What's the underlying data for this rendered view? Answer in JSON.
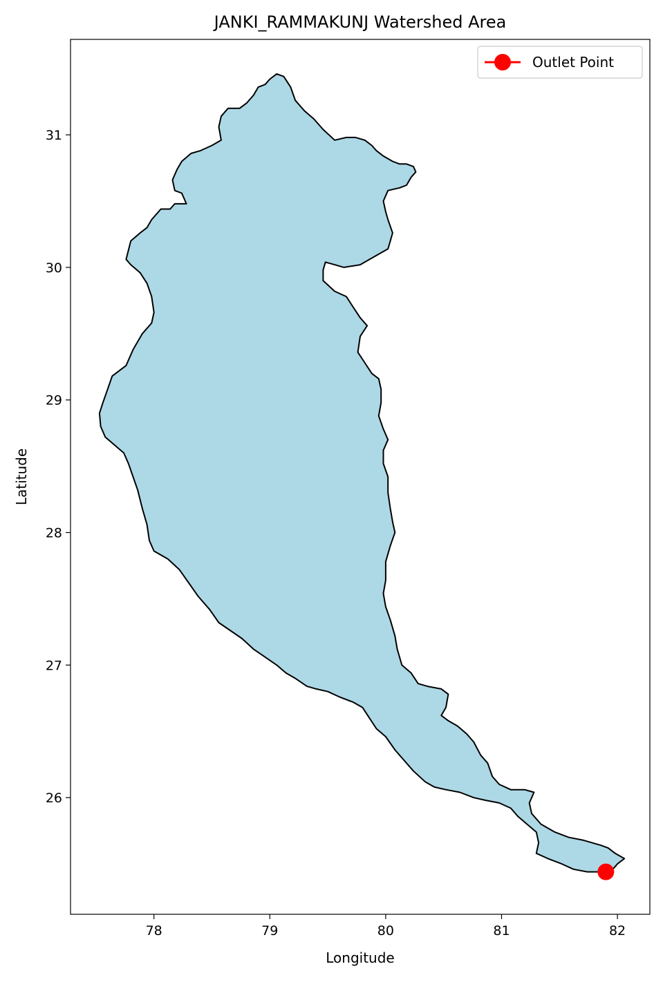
{
  "title": "JANKI_RAMMAKUNJ Watershed Area",
  "xlabel": "Longitude",
  "ylabel": "Latitude",
  "legend": {
    "label": "Outlet Point",
    "placement": "top-right"
  },
  "xticks": [
    "78",
    "79",
    "80",
    "81",
    "82"
  ],
  "yticks": [
    "26",
    "27",
    "28",
    "29",
    "30",
    "31"
  ],
  "colors": {
    "watershed_fill": "#add8e6",
    "watershed_edge": "#000000",
    "outlet": "#ff0000"
  },
  "chart_data": {
    "type": "map",
    "xlim": [
      77.28,
      82.28
    ],
    "ylim": [
      25.12,
      31.72
    ],
    "outlet": {
      "lon": 81.9,
      "lat": 25.44
    },
    "boundary": [
      [
        77.56,
        28.98
      ],
      [
        77.6,
        29.08
      ],
      [
        77.64,
        29.18
      ],
      [
        77.76,
        29.26
      ],
      [
        77.82,
        29.38
      ],
      [
        77.9,
        29.5
      ],
      [
        77.98,
        29.58
      ],
      [
        78.0,
        29.66
      ],
      [
        77.98,
        29.78
      ],
      [
        77.94,
        29.88
      ],
      [
        77.88,
        29.96
      ],
      [
        77.8,
        30.02
      ],
      [
        77.76,
        30.06
      ],
      [
        77.8,
        30.2
      ],
      [
        77.88,
        30.26
      ],
      [
        77.94,
        30.3
      ],
      [
        77.98,
        30.36
      ],
      [
        78.06,
        30.44
      ],
      [
        78.14,
        30.44
      ],
      [
        78.18,
        30.48
      ],
      [
        78.28,
        30.48
      ],
      [
        78.24,
        30.56
      ],
      [
        78.18,
        30.58
      ],
      [
        78.16,
        30.66
      ],
      [
        78.2,
        30.74
      ],
      [
        78.24,
        30.8
      ],
      [
        78.32,
        30.86
      ],
      [
        78.4,
        30.88
      ],
      [
        78.5,
        30.92
      ],
      [
        78.58,
        30.96
      ],
      [
        78.56,
        31.06
      ],
      [
        78.58,
        31.14
      ],
      [
        78.64,
        31.2
      ],
      [
        78.74,
        31.2
      ],
      [
        78.8,
        31.24
      ],
      [
        78.86,
        31.3
      ],
      [
        78.9,
        31.36
      ],
      [
        78.96,
        31.38
      ],
      [
        79.0,
        31.42
      ],
      [
        79.06,
        31.46
      ],
      [
        79.12,
        31.44
      ],
      [
        79.18,
        31.36
      ],
      [
        79.22,
        31.26
      ],
      [
        79.3,
        31.18
      ],
      [
        79.38,
        31.12
      ],
      [
        79.46,
        31.04
      ],
      [
        79.56,
        30.96
      ],
      [
        79.66,
        30.98
      ],
      [
        79.74,
        30.98
      ],
      [
        79.82,
        30.96
      ],
      [
        79.88,
        30.92
      ],
      [
        79.92,
        30.88
      ],
      [
        79.98,
        30.84
      ],
      [
        80.06,
        30.8
      ],
      [
        80.12,
        30.78
      ],
      [
        80.18,
        30.78
      ],
      [
        80.24,
        30.76
      ],
      [
        80.26,
        30.72
      ],
      [
        80.22,
        30.68
      ],
      [
        80.18,
        30.62
      ],
      [
        80.12,
        30.6
      ],
      [
        80.02,
        30.58
      ],
      [
        79.98,
        30.5
      ],
      [
        80.0,
        30.42
      ],
      [
        80.02,
        30.36
      ],
      [
        80.06,
        30.26
      ],
      [
        80.04,
        30.2
      ],
      [
        80.02,
        30.14
      ],
      [
        79.94,
        30.1
      ],
      [
        79.86,
        30.06
      ],
      [
        79.78,
        30.02
      ],
      [
        79.64,
        30.0
      ],
      [
        79.56,
        30.02
      ],
      [
        79.48,
        30.04
      ],
      [
        79.46,
        29.98
      ],
      [
        79.46,
        29.9
      ],
      [
        79.56,
        29.82
      ],
      [
        79.66,
        29.78
      ],
      [
        79.72,
        29.7
      ],
      [
        79.78,
        29.62
      ],
      [
        79.84,
        29.56
      ],
      [
        79.78,
        29.48
      ],
      [
        79.76,
        29.36
      ],
      [
        79.82,
        29.28
      ],
      [
        79.88,
        29.2
      ],
      [
        79.94,
        29.16
      ],
      [
        79.96,
        29.08
      ],
      [
        79.96,
        28.98
      ],
      [
        79.94,
        28.88
      ],
      [
        79.98,
        28.78
      ],
      [
        80.02,
        28.7
      ],
      [
        79.98,
        28.62
      ],
      [
        79.98,
        28.52
      ],
      [
        80.02,
        28.42
      ],
      [
        80.02,
        28.3
      ],
      [
        80.04,
        28.18
      ],
      [
        80.06,
        28.08
      ],
      [
        80.08,
        28.0
      ],
      [
        80.04,
        27.9
      ],
      [
        80.0,
        27.78
      ],
      [
        80.0,
        27.64
      ],
      [
        79.98,
        27.54
      ],
      [
        80.0,
        27.44
      ],
      [
        80.04,
        27.34
      ],
      [
        80.08,
        27.22
      ],
      [
        80.1,
        27.12
      ],
      [
        80.14,
        27.0
      ],
      [
        80.22,
        26.94
      ],
      [
        80.28,
        26.86
      ],
      [
        80.36,
        26.84
      ],
      [
        80.48,
        26.82
      ],
      [
        80.54,
        26.78
      ],
      [
        80.52,
        26.68
      ],
      [
        80.48,
        26.62
      ],
      [
        80.54,
        26.58
      ],
      [
        80.62,
        26.54
      ],
      [
        80.7,
        26.48
      ],
      [
        80.76,
        26.42
      ],
      [
        80.82,
        26.32
      ],
      [
        80.88,
        26.26
      ],
      [
        80.92,
        26.16
      ],
      [
        80.98,
        26.1
      ],
      [
        81.08,
        26.06
      ],
      [
        81.2,
        26.06
      ],
      [
        81.28,
        26.04
      ],
      [
        81.24,
        25.96
      ],
      [
        81.26,
        25.88
      ],
      [
        81.34,
        25.8
      ],
      [
        81.46,
        25.74
      ],
      [
        81.58,
        25.7
      ],
      [
        81.7,
        25.68
      ],
      [
        81.78,
        25.66
      ],
      [
        81.86,
        25.64
      ],
      [
        81.92,
        25.62
      ],
      [
        81.98,
        25.58
      ],
      [
        82.06,
        25.54
      ],
      [
        82.0,
        25.5
      ],
      [
        81.96,
        25.46
      ],
      [
        81.9,
        25.44
      ],
      [
        81.84,
        25.44
      ],
      [
        81.74,
        25.44
      ],
      [
        81.62,
        25.46
      ],
      [
        81.52,
        25.5
      ],
      [
        81.4,
        25.54
      ],
      [
        81.3,
        25.58
      ],
      [
        81.32,
        25.66
      ],
      [
        81.3,
        25.74
      ],
      [
        81.22,
        25.8
      ],
      [
        81.14,
        25.86
      ],
      [
        81.08,
        25.92
      ],
      [
        80.98,
        25.96
      ],
      [
        80.86,
        25.98
      ],
      [
        80.76,
        26.0
      ],
      [
        80.64,
        26.04
      ],
      [
        80.52,
        26.06
      ],
      [
        80.42,
        26.08
      ],
      [
        80.34,
        26.12
      ],
      [
        80.24,
        26.2
      ],
      [
        80.16,
        26.28
      ],
      [
        80.08,
        26.36
      ],
      [
        80.0,
        26.46
      ],
      [
        79.92,
        26.52
      ],
      [
        79.86,
        26.6
      ],
      [
        79.8,
        26.68
      ],
      [
        79.72,
        26.72
      ],
      [
        79.6,
        26.76
      ],
      [
        79.5,
        26.8
      ],
      [
        79.4,
        26.82
      ],
      [
        79.32,
        26.84
      ],
      [
        79.22,
        26.9
      ],
      [
        79.14,
        26.94
      ],
      [
        79.06,
        27.0
      ],
      [
        78.96,
        27.06
      ],
      [
        78.86,
        27.12
      ],
      [
        78.76,
        27.2
      ],
      [
        78.66,
        27.26
      ],
      [
        78.56,
        27.32
      ],
      [
        78.48,
        27.42
      ],
      [
        78.38,
        27.52
      ],
      [
        78.3,
        27.62
      ],
      [
        78.22,
        27.72
      ],
      [
        78.12,
        27.8
      ],
      [
        78.0,
        27.86
      ],
      [
        77.96,
        27.94
      ],
      [
        77.94,
        28.06
      ],
      [
        77.9,
        28.18
      ],
      [
        77.86,
        28.32
      ],
      [
        77.82,
        28.42
      ],
      [
        77.78,
        28.52
      ],
      [
        77.74,
        28.6
      ],
      [
        77.66,
        28.66
      ],
      [
        77.58,
        28.72
      ],
      [
        77.54,
        28.8
      ],
      [
        77.53,
        28.9
      ],
      [
        77.56,
        28.98
      ]
    ]
  }
}
